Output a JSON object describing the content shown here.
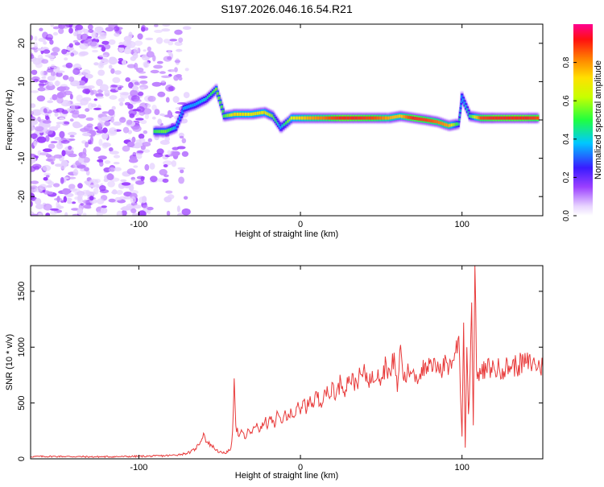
{
  "title": "S197.2026.046.16.54.R21",
  "colors": {
    "line": "#e83a3a",
    "axis": "#000000",
    "background": "#ffffff"
  },
  "chart_data": [
    {
      "type": "heatmap",
      "title": "S197.2026.046.16.54.R21",
      "xlabel": "Height of straight line (km)",
      "ylabel": "Frequency (Hz)",
      "xlim": [
        -167,
        150
      ],
      "ylim": [
        -25,
        25
      ],
      "xticks": [
        -100,
        0,
        100
      ],
      "yticks": [
        20,
        10,
        0,
        -10,
        -20
      ],
      "grid": false,
      "colorbar": {
        "label": "Normalized spectral amplitude",
        "range": [
          0,
          1
        ],
        "ticks": [
          0.0,
          0.2,
          0.4,
          0.6,
          0.8
        ],
        "colormap": "rainbow (purple-blue-cyan-green-yellow-orange-red)"
      },
      "noise_region": {
        "x_from": -167,
        "x_to": -75,
        "freq_from": -25,
        "freq_to": 25,
        "amplitude": 0.05
      },
      "ridge": [
        {
          "x": -90,
          "freq": -3.0,
          "amplitude": 0.55
        },
        {
          "x": -83,
          "freq": -3.0,
          "amplitude": 0.6
        },
        {
          "x": -77,
          "freq": -2.0,
          "amplitude": 0.4
        },
        {
          "x": -72,
          "freq": 3.0,
          "amplitude": 0.4
        },
        {
          "x": -65,
          "freq": 4.0,
          "amplitude": 0.4
        },
        {
          "x": -58,
          "freq": 5.5,
          "amplitude": 0.45
        },
        {
          "x": -52,
          "freq": 8.0,
          "amplitude": 0.6
        },
        {
          "x": -47,
          "freq": 1.0,
          "amplitude": 0.55
        },
        {
          "x": -40,
          "freq": 1.5,
          "amplitude": 0.75
        },
        {
          "x": -30,
          "freq": 1.5,
          "amplitude": 0.7
        },
        {
          "x": -22,
          "freq": 2.0,
          "amplitude": 0.72
        },
        {
          "x": -17,
          "freq": 1.0,
          "amplitude": 0.6
        },
        {
          "x": -12,
          "freq": -2.0,
          "amplitude": 0.4
        },
        {
          "x": -5,
          "freq": 0.5,
          "amplitude": 0.7
        },
        {
          "x": 5,
          "freq": 0.5,
          "amplitude": 0.8
        },
        {
          "x": 15,
          "freq": 0.5,
          "amplitude": 0.85
        },
        {
          "x": 25,
          "freq": 0.5,
          "amplitude": 0.95
        },
        {
          "x": 35,
          "freq": 0.5,
          "amplitude": 0.95
        },
        {
          "x": 45,
          "freq": 0.5,
          "amplitude": 0.9
        },
        {
          "x": 55,
          "freq": 0.5,
          "amplitude": 0.8
        },
        {
          "x": 62,
          "freq": 1.0,
          "amplitude": 0.75
        },
        {
          "x": 70,
          "freq": 0.5,
          "amplitude": 0.95
        },
        {
          "x": 78,
          "freq": 0.0,
          "amplitude": 0.9
        },
        {
          "x": 85,
          "freq": -0.5,
          "amplitude": 0.85
        },
        {
          "x": 92,
          "freq": -1.5,
          "amplitude": 0.8
        },
        {
          "x": 98,
          "freq": -1.0,
          "amplitude": 0.5
        },
        {
          "x": 100,
          "freq": 6.0,
          "amplitude": 0.4
        },
        {
          "x": 105,
          "freq": 1.0,
          "amplitude": 0.5
        },
        {
          "x": 112,
          "freq": 0.5,
          "amplitude": 0.9
        },
        {
          "x": 120,
          "freq": 0.5,
          "amplitude": 0.95
        },
        {
          "x": 130,
          "freq": 0.5,
          "amplitude": 0.95
        },
        {
          "x": 140,
          "freq": 0.5,
          "amplitude": 0.95
        },
        {
          "x": 148,
          "freq": 0.5,
          "amplitude": 0.9
        }
      ]
    },
    {
      "type": "line",
      "xlabel": "Height of straight line (km)",
      "ylabel": "SNR (10 * v/v)",
      "xlim": [
        -167,
        150
      ],
      "ylim": [
        0,
        1730
      ],
      "xticks": [
        -100,
        0,
        100
      ],
      "yticks": [
        0,
        500,
        1000,
        1500
      ],
      "grid": false,
      "series": [
        {
          "name": "SNR",
          "x": [
            -167,
            -150,
            -130,
            -110,
            -90,
            -80,
            -72,
            -68,
            -65,
            -62,
            -60,
            -58,
            -55,
            -52,
            -50,
            -48,
            -45,
            -43,
            -42,
            -41,
            -40,
            -38,
            -36,
            -34,
            -32,
            -30,
            -27,
            -25,
            -22,
            -20,
            -18,
            -16,
            -14,
            -12,
            -10,
            -8,
            -6,
            -4,
            -2,
            0,
            2,
            4,
            6,
            8,
            10,
            12,
            15,
            18,
            20,
            22,
            25,
            28,
            30,
            33,
            36,
            40,
            44,
            48,
            50,
            53,
            56,
            58,
            60,
            62,
            64,
            66,
            68,
            70,
            72,
            75,
            78,
            80,
            82,
            85,
            88,
            90,
            92,
            94,
            96,
            98,
            100,
            101,
            102,
            103,
            104,
            105,
            106,
            107,
            108,
            109,
            110,
            112,
            115,
            118,
            120,
            125,
            130,
            135,
            140,
            145,
            150
          ],
          "values": [
            20,
            22,
            18,
            20,
            25,
            30,
            45,
            60,
            90,
            150,
            230,
            150,
            120,
            80,
            60,
            50,
            60,
            100,
            250,
            720,
            300,
            200,
            240,
            180,
            260,
            230,
            320,
            250,
            340,
            300,
            380,
            280,
            410,
            330,
            400,
            350,
            450,
            370,
            470,
            400,
            520,
            440,
            560,
            460,
            600,
            480,
            620,
            540,
            680,
            560,
            700,
            620,
            740,
            680,
            720,
            760,
            700,
            800,
            720,
            860,
            740,
            950,
            600,
            1020,
            700,
            760,
            780,
            800,
            720,
            820,
            760,
            850,
            800,
            870,
            780,
            900,
            820,
            880,
            950,
            1100,
            200,
            1220,
            100,
            1000,
            400,
            780,
            1400,
            300,
            1730,
            800,
            780,
            760,
            800,
            820,
            800,
            810,
            830,
            840,
            860,
            850,
            820
          ]
        }
      ]
    }
  ]
}
